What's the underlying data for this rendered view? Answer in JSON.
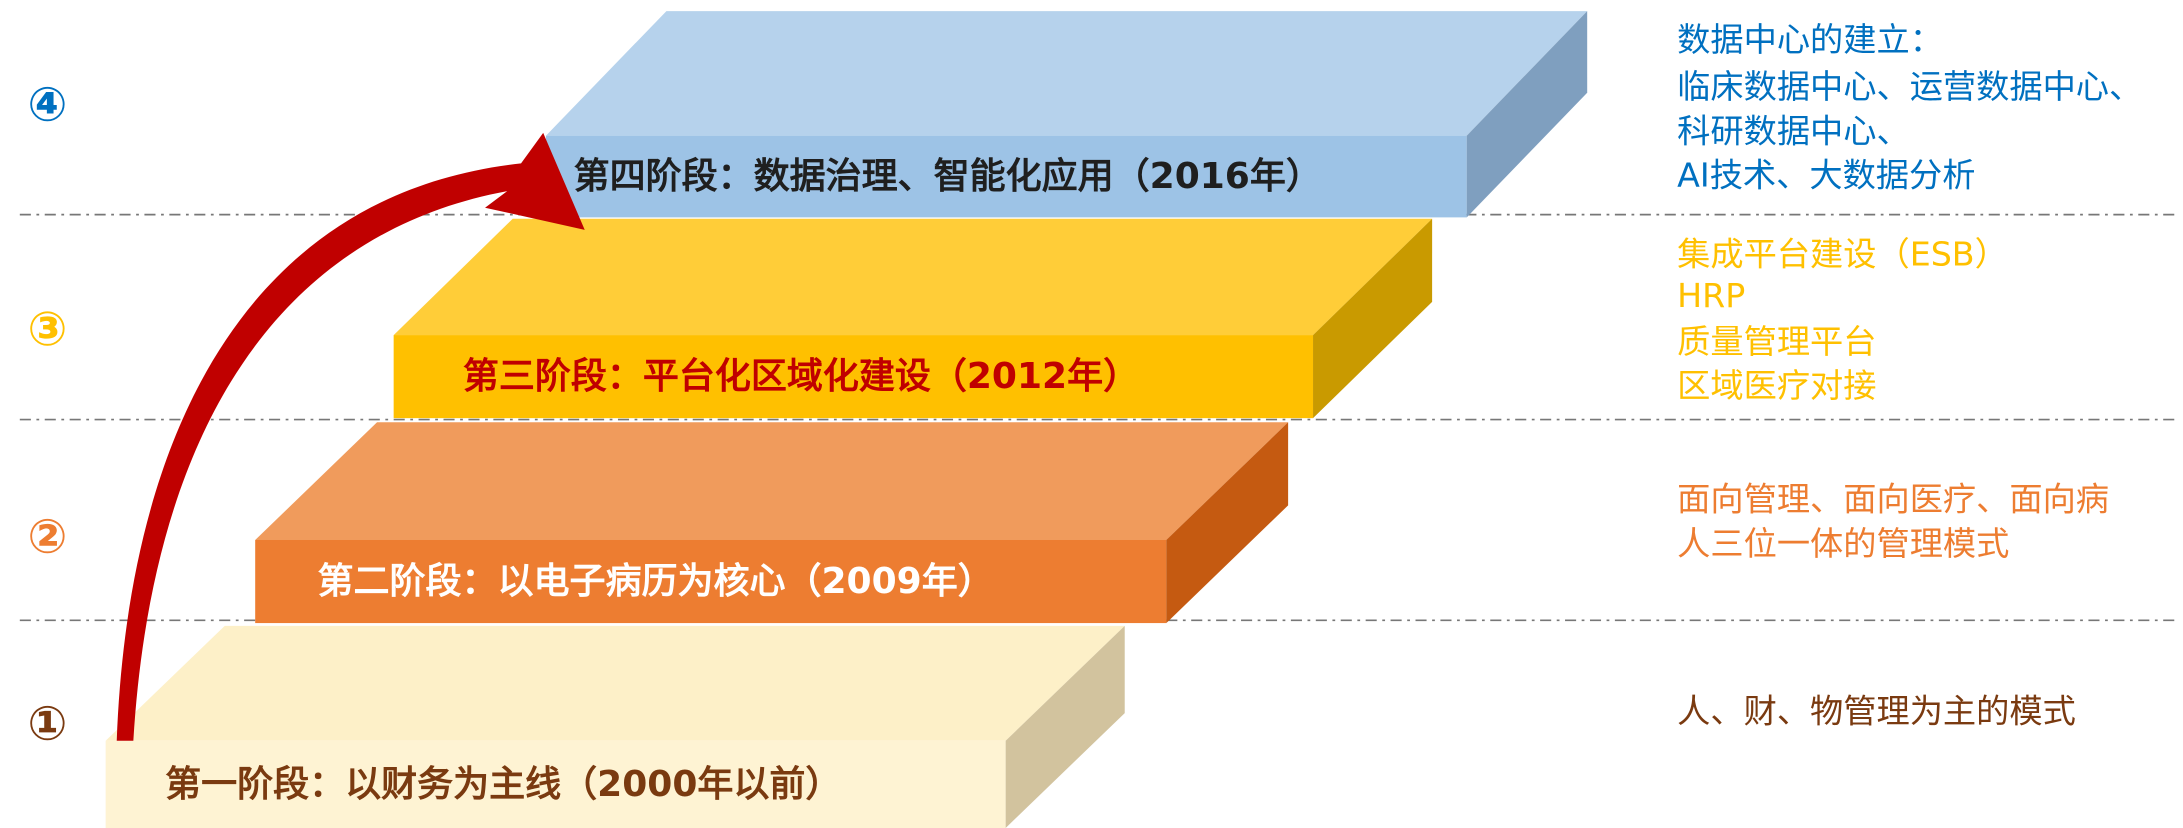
{
  "stages": [
    {
      "marker": "①",
      "label": "第一阶段：以财务为主线（2000年以前）",
      "description": [
        "人、财、物管理为主的模式"
      ]
    },
    {
      "marker": "②",
      "label": "第二阶段：以电子病历为核心（2009年）",
      "description": [
        "面向管理、面向医疗、面向病",
        "人三位一体的管理模式"
      ]
    },
    {
      "marker": "③",
      "label": "第三阶段：平台化区域化建设（2012年）",
      "description": [
        "集成平台建设（ESB）",
        "HRP",
        "质量管理平台",
        "区域医疗对接"
      ]
    },
    {
      "marker": "④",
      "label": "第四阶段：数据治理、智能化应用（2016年）",
      "description": [
        "数据中心的建立：",
        "临床数据中心、运营数据中心、",
        "科研数据中心、",
        "AI技术、大数据分析"
      ]
    }
  ]
}
